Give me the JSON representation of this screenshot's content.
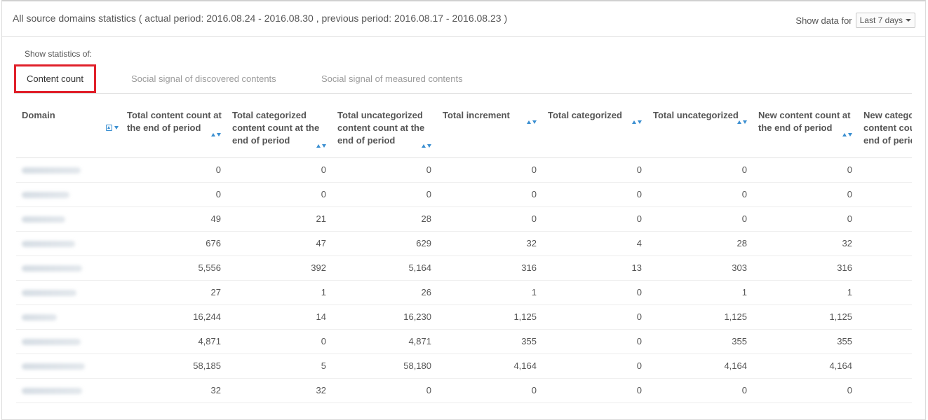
{
  "header": {
    "title": "All source domains statistics ( actual period: 2016.08.24 - 2016.08.30 , previous period: 2016.08.17 - 2016.08.23 )",
    "show_data_label": "Show data for",
    "period_select": "Last 7 days"
  },
  "stats_label": "Show statistics of:",
  "tabs": [
    {
      "label": "Content count",
      "active": true
    },
    {
      "label": "Social signal of discovered contents",
      "active": false
    },
    {
      "label": "Social signal of measured contents",
      "active": false
    }
  ],
  "table": {
    "columns": [
      "Domain",
      "Total content count at the end of period",
      "Total categorized content count at the end of period",
      "Total uncategorized content count at the end of period",
      "Total increment",
      "Total categorized",
      "Total uncategorized",
      "New content count at the end of period",
      "New categorized content count at the end of period"
    ],
    "rows": [
      [
        "",
        "0",
        "0",
        "0",
        "0",
        "0",
        "0",
        "0",
        ""
      ],
      [
        "",
        "0",
        "0",
        "0",
        "0",
        "0",
        "0",
        "0",
        ""
      ],
      [
        "",
        "49",
        "21",
        "28",
        "0",
        "0",
        "0",
        "0",
        ""
      ],
      [
        "",
        "676",
        "47",
        "629",
        "32",
        "4",
        "28",
        "32",
        ""
      ],
      [
        "",
        "5,556",
        "392",
        "5,164",
        "316",
        "13",
        "303",
        "316",
        ""
      ],
      [
        "",
        "27",
        "1",
        "26",
        "1",
        "0",
        "1",
        "1",
        ""
      ],
      [
        "",
        "16,244",
        "14",
        "16,230",
        "1,125",
        "0",
        "1,125",
        "1,125",
        ""
      ],
      [
        "",
        "4,871",
        "0",
        "4,871",
        "355",
        "0",
        "355",
        "355",
        ""
      ],
      [
        "",
        "58,185",
        "5",
        "58,180",
        "4,164",
        "0",
        "4,164",
        "4,164",
        ""
      ],
      [
        "",
        "32",
        "32",
        "0",
        "0",
        "0",
        "0",
        "0",
        ""
      ]
    ]
  },
  "colors": {
    "active_tab_border": "#e0202a",
    "sort_icon": "#3b8fd1"
  }
}
